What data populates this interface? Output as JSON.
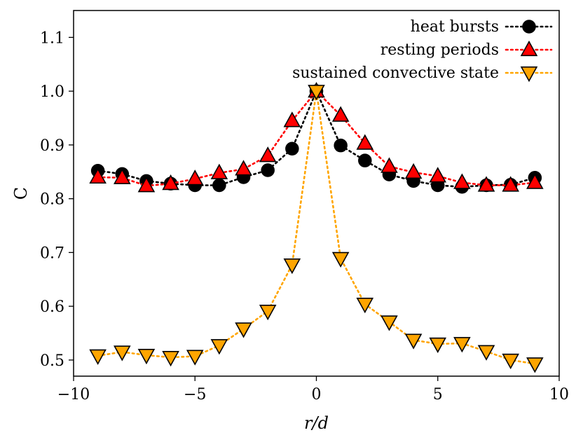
{
  "chart_data": {
    "type": "line",
    "title": "",
    "xlabel": "r/d",
    "ylabel": "C",
    "xlim": [
      -10,
      10
    ],
    "ylim": [
      0.47,
      1.15
    ],
    "xticks": [
      -10,
      -5,
      0,
      5,
      10
    ],
    "xtick_labels": [
      "−10",
      "−5",
      "0",
      "5",
      "10"
    ],
    "yticks": [
      0.5,
      0.6,
      0.7,
      0.8,
      0.9,
      1.0,
      1.1
    ],
    "ytick_labels": [
      "0.5",
      "0.6",
      "0.7",
      "0.8",
      "0.9",
      "1.0",
      "1.1"
    ],
    "grid": false,
    "legend_position": "top-right",
    "x": [
      -9,
      -8,
      -7,
      -6,
      -5,
      -4,
      -3,
      -2,
      -1,
      0,
      1,
      2,
      3,
      4,
      5,
      6,
      7,
      8,
      9
    ],
    "series": [
      {
        "name": "heat bursts",
        "marker": "circle",
        "line_color": "#000000",
        "marker_color": "#000000",
        "values": [
          0.852,
          0.846,
          0.833,
          0.828,
          0.825,
          0.825,
          0.84,
          0.853,
          0.893,
          1.0,
          0.899,
          0.871,
          0.845,
          0.833,
          0.825,
          0.822,
          0.825,
          0.826,
          0.839
        ]
      },
      {
        "name": "resting periods",
        "marker": "triangle-up",
        "line_color": "#ff0000",
        "marker_color": "#ff0000",
        "values": [
          0.84,
          0.839,
          0.824,
          0.828,
          0.837,
          0.848,
          0.855,
          0.88,
          0.945,
          1.0,
          0.955,
          0.903,
          0.86,
          0.849,
          0.842,
          0.83,
          0.825,
          0.825,
          0.83
        ]
      },
      {
        "name": "sustained convective state",
        "marker": "triangle-down",
        "line_color": "#ffa500",
        "marker_color": "#ffa500",
        "values": [
          0.508,
          0.515,
          0.509,
          0.505,
          0.507,
          0.527,
          0.558,
          0.591,
          0.677,
          1.0,
          0.689,
          0.604,
          0.571,
          0.537,
          0.53,
          0.531,
          0.516,
          0.5,
          0.493
        ]
      }
    ]
  }
}
